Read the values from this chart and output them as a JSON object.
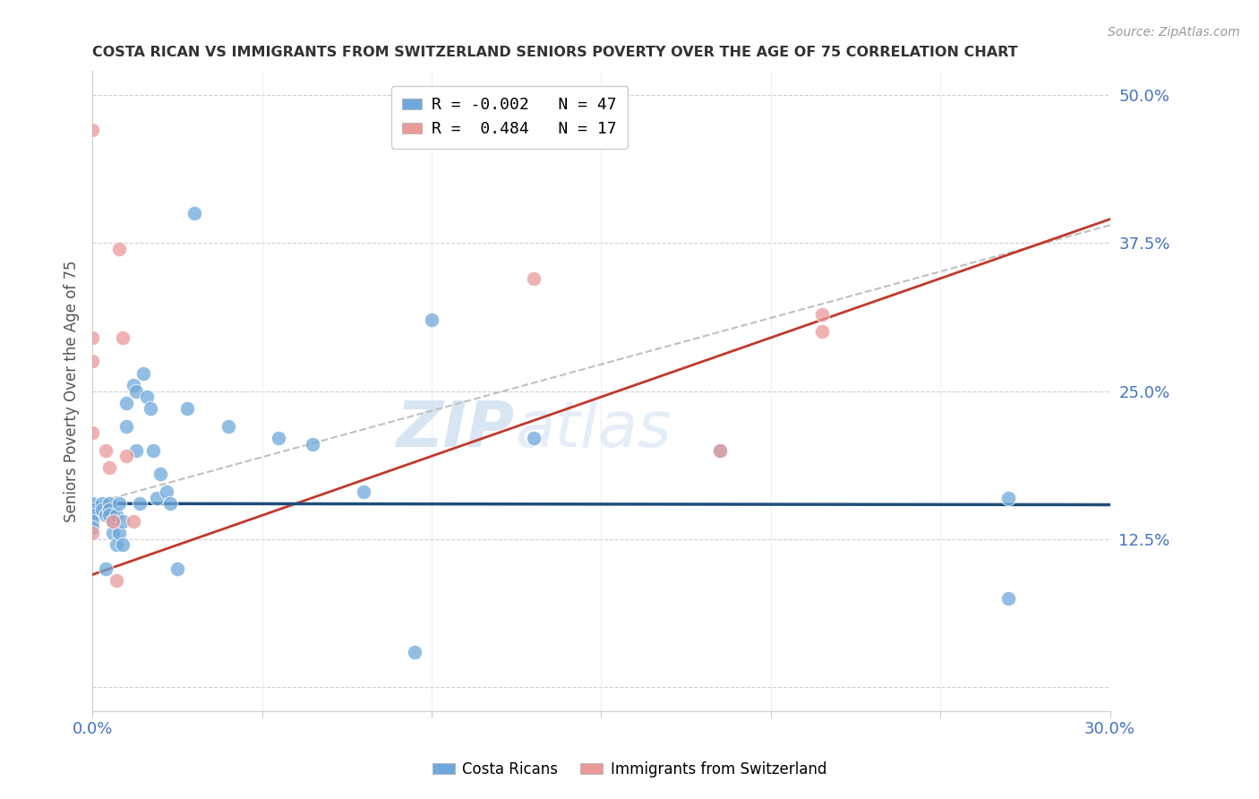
{
  "title": "COSTA RICAN VS IMMIGRANTS FROM SWITZERLAND SENIORS POVERTY OVER THE AGE OF 75 CORRELATION CHART",
  "source": "Source: ZipAtlas.com",
  "ylabel": "Seniors Poverty Over the Age of 75",
  "xmin": 0.0,
  "xmax": 0.3,
  "ymin": -0.02,
  "ymax": 0.52,
  "yticks": [
    0.0,
    0.125,
    0.25,
    0.375,
    0.5
  ],
  "ytick_labels": [
    "",
    "12.5%",
    "25.0%",
    "37.5%",
    "50.0%"
  ],
  "xticks": [
    0.0,
    0.05,
    0.1,
    0.15,
    0.2,
    0.25,
    0.3
  ],
  "xtick_labels": [
    "0.0%",
    "",
    "",
    "",
    "",
    "",
    "30.0%"
  ],
  "blue_color": "#6fa8dc",
  "pink_color": "#ea9999",
  "legend_blue_label": "R = -0.002   N = 47",
  "legend_pink_label": "R =  0.484   N = 17",
  "axis_color": "#4472c4",
  "watermark_zip": "ZIP",
  "watermark_atlas": "atlas",
  "costa_ricans_x": [
    0.0,
    0.0,
    0.0,
    0.0,
    0.0,
    0.003,
    0.003,
    0.004,
    0.004,
    0.005,
    0.005,
    0.005,
    0.006,
    0.006,
    0.007,
    0.007,
    0.008,
    0.008,
    0.009,
    0.009,
    0.01,
    0.01,
    0.012,
    0.013,
    0.013,
    0.014,
    0.015,
    0.016,
    0.017,
    0.018,
    0.019,
    0.02,
    0.022,
    0.023,
    0.025,
    0.028,
    0.03,
    0.04,
    0.055,
    0.065,
    0.08,
    0.095,
    0.1,
    0.13,
    0.185,
    0.27,
    0.27
  ],
  "costa_ricans_y": [
    0.155,
    0.15,
    0.145,
    0.14,
    0.135,
    0.155,
    0.15,
    0.145,
    0.1,
    0.155,
    0.15,
    0.145,
    0.14,
    0.13,
    0.145,
    0.12,
    0.155,
    0.13,
    0.14,
    0.12,
    0.24,
    0.22,
    0.255,
    0.25,
    0.2,
    0.155,
    0.265,
    0.245,
    0.235,
    0.2,
    0.16,
    0.18,
    0.165,
    0.155,
    0.1,
    0.235,
    0.4,
    0.22,
    0.21,
    0.205,
    0.165,
    0.03,
    0.31,
    0.21,
    0.2,
    0.075,
    0.16
  ],
  "swiss_x": [
    0.0,
    0.0,
    0.0,
    0.0,
    0.0,
    0.004,
    0.005,
    0.006,
    0.007,
    0.008,
    0.009,
    0.01,
    0.012,
    0.13,
    0.185,
    0.215,
    0.215
  ],
  "swiss_y": [
    0.47,
    0.295,
    0.275,
    0.215,
    0.13,
    0.2,
    0.185,
    0.14,
    0.09,
    0.37,
    0.295,
    0.195,
    0.14,
    0.345,
    0.2,
    0.315,
    0.3
  ],
  "blue_line_x": [
    0.0,
    0.3
  ],
  "blue_line_y": [
    0.155,
    0.154
  ],
  "pink_line_x": [
    0.0,
    0.3
  ],
  "pink_line_y": [
    0.095,
    0.395
  ],
  "dash_line_x": [
    0.0,
    0.3
  ],
  "dash_line_y": [
    0.155,
    0.39
  ],
  "blue_line_color": "#1f4e79",
  "pink_line_color": "#c0392b",
  "dash_line_color": "#c0c0c0"
}
